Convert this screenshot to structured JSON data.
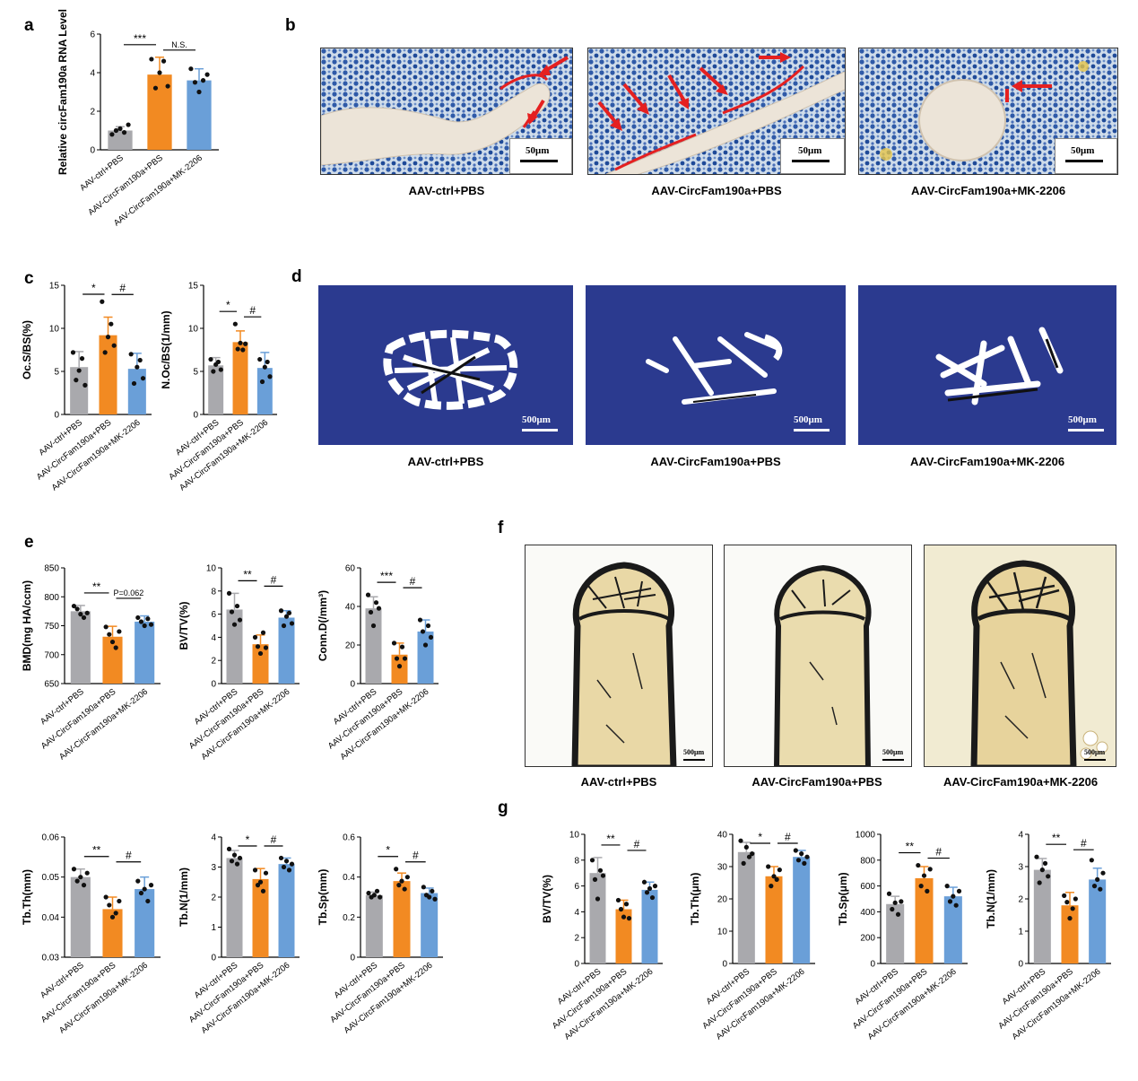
{
  "panels": {
    "a": "a",
    "b": "b",
    "c": "c",
    "d": "d",
    "e": "e",
    "f": "f",
    "g": "g"
  },
  "colors": {
    "ctrl": "#a9a9ad",
    "circ": "#f28a22",
    "mk": "#6a9fd8",
    "trab_bg": "#2b3a8f",
    "stain": "#e9d8a6"
  },
  "group_labels": [
    "AAV-ctrl+PBS",
    "AAV-CircFam190a+PBS",
    "AAV-CircFam190a+MK-2206"
  ],
  "scale": {
    "b": "50μm",
    "d": "500μm",
    "f": "500μm"
  },
  "chart_data": [
    {
      "id": "a",
      "type": "bar",
      "ylabel": "Relative circFam190a RNA Level",
      "ylim": [
        0,
        6
      ],
      "yticks": [
        0,
        2,
        4,
        6
      ],
      "categories": [
        "AAV-ctrl+PBS",
        "AAV-CircFam190a+PBS",
        "AAV-CircFam190a+MK-2206"
      ],
      "values": [
        1.0,
        3.9,
        3.6
      ],
      "sd": [
        0.2,
        0.9,
        0.6
      ],
      "points": [
        [
          0.8,
          1.0,
          1.1,
          0.9,
          1.3
        ],
        [
          4.7,
          3.2,
          4.0,
          4.6,
          3.3
        ],
        [
          4.2,
          3.5,
          3.0,
          3.6,
          3.9
        ]
      ],
      "sig": [
        {
          "from": 0,
          "to": 1,
          "label": "***"
        },
        {
          "from": 1,
          "to": 2,
          "label": "N.S."
        }
      ]
    },
    {
      "id": "c1",
      "type": "bar",
      "ylabel": "Oc.S/BS(%)",
      "ylim": [
        0,
        15
      ],
      "yticks": [
        0,
        5,
        10,
        15
      ],
      "categories": [
        "AAV-ctrl+PBS",
        "AAV-CircFam190a+PBS",
        "AAV-CircFam190a+MK-2206"
      ],
      "values": [
        5.5,
        9.2,
        5.3
      ],
      "sd": [
        1.8,
        2.1,
        1.8
      ],
      "points": [
        [
          7.2,
          4.0,
          5.1,
          6.5,
          3.4
        ],
        [
          13.1,
          7.2,
          9.0,
          10.5,
          8.0
        ],
        [
          7.0,
          3.6,
          5.5,
          6.3,
          4.2
        ]
      ],
      "sig": [
        {
          "from": 0,
          "to": 1,
          "label": "*"
        },
        {
          "from": 1,
          "to": 2,
          "label": "#"
        }
      ]
    },
    {
      "id": "c2",
      "type": "bar",
      "ylabel": "N.Oc/BS(1/mm)",
      "ylim": [
        0,
        15
      ],
      "yticks": [
        0,
        5,
        10,
        15
      ],
      "categories": [
        "AAV-ctrl+PBS",
        "AAV-CircFam190a+PBS",
        "AAV-CircFam190a+MK-2206"
      ],
      "values": [
        5.7,
        8.4,
        5.4
      ],
      "sd": [
        0.9,
        1.3,
        1.8
      ],
      "points": [
        [
          6.4,
          5.0,
          5.8,
          6.1,
          5.2
        ],
        [
          10.5,
          7.6,
          8.3,
          7.5,
          8.2
        ],
        [
          6.4,
          3.8,
          5.5,
          6.1,
          4.4
        ]
      ],
      "sig": [
        {
          "from": 0,
          "to": 1,
          "label": "*"
        },
        {
          "from": 1,
          "to": 2,
          "label": "#"
        }
      ]
    },
    {
      "id": "e1",
      "type": "bar",
      "ylabel": "BMD(mg HA/ccm)",
      "ylim": [
        650,
        850
      ],
      "yticks": [
        650,
        700,
        750,
        800,
        850
      ],
      "categories": [
        "AAV-ctrl+PBS",
        "AAV-CircFam190a+PBS",
        "AAV-CircFam190a+MK-2206"
      ],
      "values": [
        775,
        731,
        757
      ],
      "sd": [
        10,
        18,
        10
      ],
      "points": [
        [
          784,
          779,
          770,
          764,
          772
        ],
        [
          748,
          735,
          722,
          712,
          740
        ],
        [
          764,
          757,
          750,
          762,
          752
        ]
      ],
      "sig": [
        {
          "from": 0,
          "to": 1,
          "label": "**"
        },
        {
          "from": 1,
          "to": 2,
          "label": "P=0.062"
        }
      ]
    },
    {
      "id": "e2",
      "type": "bar",
      "ylabel": "BV/TV(%)",
      "ylim": [
        0,
        10
      ],
      "yticks": [
        0,
        2,
        4,
        6,
        8,
        10
      ],
      "categories": [
        "AAV-ctrl+PBS",
        "AAV-CircFam190a+PBS",
        "AAV-CircFam190a+MK-2206"
      ],
      "values": [
        6.4,
        3.4,
        5.7
      ],
      "sd": [
        1.4,
        0.8,
        0.6
      ],
      "points": [
        [
          7.8,
          6.2,
          5.1,
          6.7,
          5.5
        ],
        [
          4.0,
          3.2,
          2.6,
          4.4,
          3.1
        ],
        [
          6.3,
          5.0,
          5.8,
          6.1,
          5.2
        ]
      ],
      "sig": [
        {
          "from": 0,
          "to": 1,
          "label": "**"
        },
        {
          "from": 1,
          "to": 2,
          "label": "#"
        }
      ]
    },
    {
      "id": "e3",
      "type": "bar",
      "ylabel": "Conn.D(/mm³)",
      "ylim": [
        0,
        60
      ],
      "yticks": [
        0,
        20,
        40,
        60
      ],
      "categories": [
        "AAV-ctrl+PBS",
        "AAV-CircFam190a+PBS",
        "AAV-CircFam190a+MK-2206"
      ],
      "values": [
        39,
        15,
        27
      ],
      "sd": [
        6,
        6,
        6
      ],
      "points": [
        [
          46,
          37,
          30,
          42,
          39
        ],
        [
          21,
          13,
          9,
          19,
          13
        ],
        [
          33,
          27,
          20,
          30,
          24
        ]
      ],
      "sig": [
        {
          "from": 0,
          "to": 1,
          "label": "***"
        },
        {
          "from": 1,
          "to": 2,
          "label": "#"
        }
      ]
    },
    {
      "id": "e4",
      "type": "bar",
      "ylabel": "Tb.Th(mm)",
      "ylim": [
        0.03,
        0.06
      ],
      "yticks": [
        0.03,
        0.04,
        0.05,
        0.06
      ],
      "categories": [
        "AAV-ctrl+PBS",
        "AAV-CircFam190a+PBS",
        "AAV-CircFam190a+MK-2206"
      ],
      "values": [
        0.05,
        0.042,
        0.047
      ],
      "sd": [
        0.002,
        0.003,
        0.003
      ],
      "points": [
        [
          0.052,
          0.049,
          0.05,
          0.048,
          0.051
        ],
        [
          0.045,
          0.043,
          0.04,
          0.041,
          0.044
        ],
        [
          0.049,
          0.046,
          0.047,
          0.044,
          0.048
        ]
      ],
      "sig": [
        {
          "from": 0,
          "to": 1,
          "label": "**"
        },
        {
          "from": 1,
          "to": 2,
          "label": "#"
        }
      ]
    },
    {
      "id": "e5",
      "type": "bar",
      "ylabel": "Tb.N(1/mm)",
      "ylim": [
        0,
        4
      ],
      "yticks": [
        0,
        1,
        2,
        3,
        4
      ],
      "categories": [
        "AAV-ctrl+PBS",
        "AAV-CircFam190a+PBS",
        "AAV-CircFam190a+MK-2206"
      ],
      "values": [
        3.3,
        2.6,
        3.1
      ],
      "sd": [
        0.25,
        0.35,
        0.2
      ],
      "points": [
        [
          3.6,
          3.2,
          3.4,
          3.1,
          3.3
        ],
        [
          2.9,
          2.4,
          2.5,
          2.2,
          2.8
        ],
        [
          3.3,
          3.0,
          3.2,
          2.9,
          3.1
        ]
      ],
      "sig": [
        {
          "from": 0,
          "to": 1,
          "label": "*"
        },
        {
          "from": 1,
          "to": 2,
          "label": "#"
        }
      ]
    },
    {
      "id": "e6",
      "type": "bar",
      "ylabel": "Tb.Sp(mm)",
      "ylim": [
        0,
        0.6
      ],
      "yticks": [
        0.0,
        0.2,
        0.4,
        0.6
      ],
      "categories": [
        "AAV-ctrl+PBS",
        "AAV-CircFam190a+PBS",
        "AAV-CircFam190a+MK-2206"
      ],
      "values": [
        0.31,
        0.38,
        0.32
      ],
      "sd": [
        0.015,
        0.04,
        0.025
      ],
      "points": [
        [
          0.32,
          0.3,
          0.31,
          0.33,
          0.3
        ],
        [
          0.44,
          0.36,
          0.38,
          0.34,
          0.4
        ],
        [
          0.35,
          0.31,
          0.3,
          0.33,
          0.29
        ]
      ],
      "sig": [
        {
          "from": 0,
          "to": 1,
          "label": "*"
        },
        {
          "from": 1,
          "to": 2,
          "label": "#"
        }
      ]
    },
    {
      "id": "g1",
      "type": "bar",
      "ylabel": "BV/TV(%)",
      "ylim": [
        0,
        10
      ],
      "yticks": [
        0,
        2,
        4,
        6,
        8,
        10
      ],
      "categories": [
        "AAV-ctrl+PBS",
        "AAV-CircFam190a+PBS",
        "AAV-CircFam190a+MK-2206"
      ],
      "values": [
        7.0,
        4.2,
        5.7
      ],
      "sd": [
        1.2,
        0.7,
        0.6
      ],
      "points": [
        [
          8.0,
          6.5,
          5.0,
          7.2,
          6.8
        ],
        [
          4.9,
          4.2,
          3.6,
          4.6,
          3.5
        ],
        [
          6.3,
          5.5,
          5.8,
          5.1,
          6.0
        ]
      ],
      "sig": [
        {
          "from": 0,
          "to": 1,
          "label": "**"
        },
        {
          "from": 1,
          "to": 2,
          "label": "#"
        }
      ]
    },
    {
      "id": "g2",
      "type": "bar",
      "ylabel": "Tb.Th(μm)",
      "ylim": [
        0,
        40
      ],
      "yticks": [
        0,
        10,
        20,
        30,
        40
      ],
      "categories": [
        "AAV-ctrl+PBS",
        "AAV-CircFam190a+PBS",
        "AAV-CircFam190a+MK-2206"
      ],
      "values": [
        34.5,
        27,
        33
      ],
      "sd": [
        3,
        3,
        2
      ],
      "points": [
        [
          38,
          31,
          36,
          33,
          34
        ],
        [
          30,
          24,
          27,
          26,
          29
        ],
        [
          35,
          32,
          34,
          31,
          33
        ]
      ],
      "sig": [
        {
          "from": 0,
          "to": 1,
          "label": "*"
        },
        {
          "from": 1,
          "to": 2,
          "label": "#"
        }
      ]
    },
    {
      "id": "g3",
      "type": "bar",
      "ylabel": "Tb.Sp(μm)",
      "ylim": [
        0,
        1000
      ],
      "yticks": [
        0,
        200,
        400,
        600,
        800,
        1000
      ],
      "categories": [
        "AAV-ctrl+PBS",
        "AAV-CircFam190a+PBS",
        "AAV-CircFam190a+MK-2206"
      ],
      "values": [
        460,
        660,
        520
      ],
      "sd": [
        60,
        90,
        70
      ],
      "points": [
        [
          540,
          420,
          470,
          380,
          480
        ],
        [
          760,
          600,
          680,
          560,
          730
        ],
        [
          600,
          480,
          520,
          450,
          560
        ]
      ],
      "sig": [
        {
          "from": 0,
          "to": 1,
          "label": "**"
        },
        {
          "from": 1,
          "to": 2,
          "label": "#"
        }
      ]
    },
    {
      "id": "g4",
      "type": "bar",
      "ylabel": "Tb.N(1/mm)",
      "ylim": [
        0,
        4
      ],
      "yticks": [
        0,
        1,
        2,
        3,
        4
      ],
      "categories": [
        "AAV-ctrl+PBS",
        "AAV-CircFam190a+PBS",
        "AAV-CircFam190a+MK-2206"
      ],
      "values": [
        2.9,
        1.8,
        2.6
      ],
      "sd": [
        0.35,
        0.4,
        0.35
      ],
      "points": [
        [
          3.3,
          2.5,
          2.9,
          3.1,
          2.7
        ],
        [
          2.1,
          1.9,
          1.4,
          1.7,
          2.0
        ],
        [
          3.2,
          2.4,
          2.6,
          2.3,
          2.8
        ]
      ],
      "sig": [
        {
          "from": 0,
          "to": 1,
          "label": "**"
        },
        {
          "from": 1,
          "to": 2,
          "label": "#"
        }
      ]
    }
  ]
}
